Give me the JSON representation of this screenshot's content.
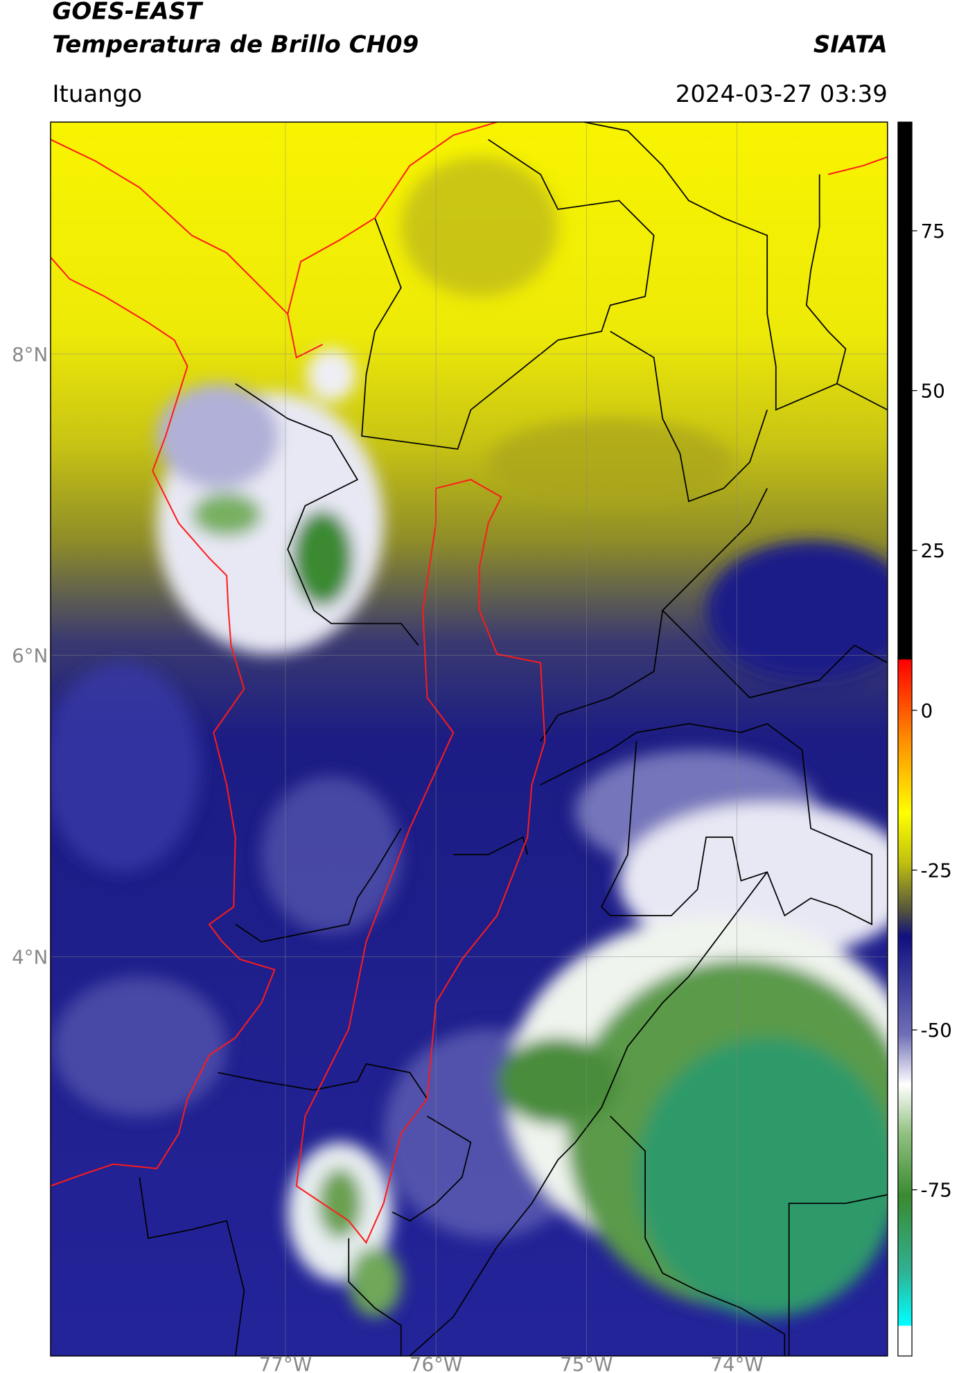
{
  "header": {
    "title": "GOES-EAST",
    "subtitle": "Temperatura de Brillo CH09",
    "org": "SIATA",
    "place": "Ituango",
    "datetime": "2024-03-27 03:39"
  },
  "map": {
    "lon_lim": [
      -78.56,
      -73.0
    ],
    "lat_lim": [
      1.35,
      9.54
    ],
    "lat_ticks": [
      {
        "value": 8,
        "label": "8°N"
      },
      {
        "value": 6,
        "label": "6°N"
      },
      {
        "value": 4,
        "label": "4°N"
      }
    ],
    "lon_ticks": [
      {
        "value": -77,
        "label": "77°W"
      },
      {
        "value": -76,
        "label": "76°W"
      },
      {
        "value": -75,
        "label": "75°W"
      },
      {
        "value": -74,
        "label": "74°W"
      }
    ],
    "grid": true
  },
  "colorbar": {
    "lim": [
      -101,
      92
    ],
    "ticks": [
      75,
      50,
      25,
      0,
      -25,
      -50,
      -75
    ]
  }
}
